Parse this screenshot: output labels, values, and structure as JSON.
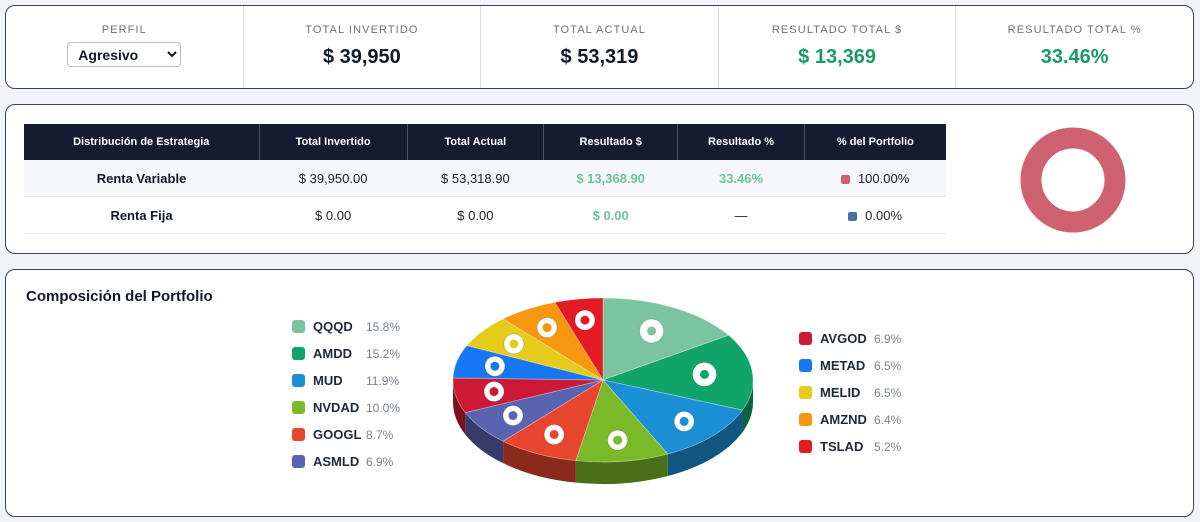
{
  "summary": {
    "profile_label": "PERFIL",
    "profile_selected": "Agresivo",
    "metrics": [
      {
        "label": "TOTAL INVERTIDO",
        "value": "$ 39,950"
      },
      {
        "label": "TOTAL ACTUAL",
        "value": "$ 53,319"
      },
      {
        "label": "RESULTADO TOTAL $",
        "value": "$ 13,369"
      },
      {
        "label": "RESULTADO TOTAL %",
        "value": "33.46%"
      }
    ]
  },
  "strategy": {
    "headers": [
      "Distribución de Estrategia",
      "Total Invertido",
      "Total Actual",
      "Resultado $",
      "Resultado %",
      "% del Portfolio"
    ],
    "rows": [
      {
        "name": "Renta Variable",
        "invested": "$ 39,950.00",
        "current": "$ 53,318.90",
        "result": "$ 13,368.90",
        "result_pct": "33.46%",
        "portfolio_pct": "100.00%",
        "color": "#d0606e"
      },
      {
        "name": "Renta Fija",
        "invested": "$ 0.00",
        "current": "$ 0.00",
        "result": "$ 0.00",
        "result_pct": "—",
        "portfolio_pct": "0.00%",
        "color": "#4a6fa5"
      }
    ],
    "donut_color": "#cf6270"
  },
  "composition": {
    "title": "Composición del Portfolio",
    "legend_left": [
      {
        "ticker": "QQQD",
        "pct": "15.8%",
        "icon": "invesco-icon",
        "color": "#7cc3a0"
      },
      {
        "ticker": "AMDD",
        "pct": "15.2%",
        "icon": "amd-icon",
        "color": "#10a36a"
      },
      {
        "ticker": "MUD",
        "pct": "11.9%",
        "icon": "micron-icon",
        "color": "#1a8fd6"
      },
      {
        "ticker": "NVDAD",
        "pct": "10.0%",
        "icon": "nvidia-icon",
        "color": "#7ab928"
      },
      {
        "ticker": "GOOGL",
        "pct": "8.7%",
        "icon": "google-icon",
        "color": "#e8452f"
      },
      {
        "ticker": "ASMLD",
        "pct": "6.9%",
        "icon": "asml-icon",
        "color": "#5a63b0"
      }
    ],
    "legend_right": [
      {
        "ticker": "AVGOD",
        "pct": "6.9%",
        "icon": "broadcom-icon",
        "color": "#cc1a36"
      },
      {
        "ticker": "METAD",
        "pct": "6.5%",
        "icon": "meta-icon",
        "color": "#1877f2"
      },
      {
        "ticker": "MELID",
        "pct": "6.5%",
        "icon": "mercadolibre-icon",
        "color": "#e5cc1b"
      },
      {
        "ticker": "AMZND",
        "pct": "6.4%",
        "icon": "amazon-icon",
        "color": "#f7960f"
      },
      {
        "ticker": "TSLAD",
        "pct": "5.2%",
        "icon": "tesla-icon",
        "color": "#e31b23"
      }
    ]
  },
  "chart_data": {
    "type": "pie",
    "categories": [
      "QQQD",
      "AMDD",
      "MUD",
      "NVDAD",
      "GOOGL",
      "ASMLD",
      "AVGOD",
      "METAD",
      "MELID",
      "AMZND",
      "TSLAD"
    ],
    "values": [
      15.8,
      15.2,
      11.9,
      10.0,
      8.7,
      6.9,
      6.9,
      6.5,
      6.5,
      6.4,
      5.2
    ],
    "colors": [
      "#7cc3a0",
      "#10a36a",
      "#1a8fd6",
      "#7ab928",
      "#e8452f",
      "#5a63b0",
      "#cc1a36",
      "#1877f2",
      "#e5cc1b",
      "#f7960f",
      "#e31b23"
    ]
  }
}
